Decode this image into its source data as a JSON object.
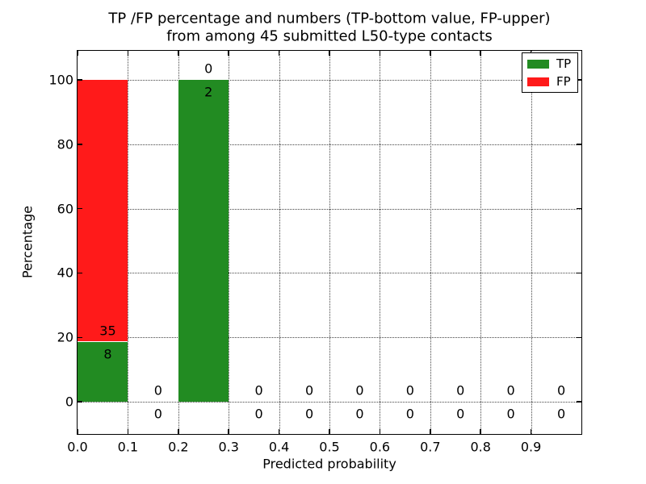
{
  "title": {
    "line1": "TP /FP percentage and numbers (TP-bottom value, FP-upper)",
    "line2": "from among 45 submitted L50-type contacts"
  },
  "axes": {
    "xlabel": "Predicted probability",
    "ylabel": "Percentage"
  },
  "legend": {
    "items": [
      {
        "label": "TP",
        "color": "#228b22"
      },
      {
        "label": "FP",
        "color": "#ff1a1a"
      }
    ]
  },
  "chart_data": {
    "type": "bar",
    "stacked": true,
    "title": "TP /FP percentage and numbers (TP-bottom value, FP-upper) from among 45 submitted L50-type contacts",
    "xlabel": "Predicted probability",
    "ylabel": "Percentage",
    "total_contacts": 45,
    "bin_edges": [
      0.0,
      0.1,
      0.2,
      0.3,
      0.4,
      0.5,
      0.6,
      0.7,
      0.8,
      0.9,
      1.0
    ],
    "series": [
      {
        "name": "TP",
        "color": "#228b22",
        "counts": [
          8,
          0,
          2,
          0,
          0,
          0,
          0,
          0,
          0,
          0
        ],
        "percent": [
          18.6,
          0,
          100,
          0,
          0,
          0,
          0,
          0,
          0,
          0
        ]
      },
      {
        "name": "FP",
        "color": "#ff1a1a",
        "counts": [
          35,
          0,
          0,
          0,
          0,
          0,
          0,
          0,
          0,
          0
        ],
        "percent": [
          81.4,
          0,
          0,
          0,
          0,
          0,
          0,
          0,
          0,
          0
        ]
      }
    ],
    "xticks": [
      "0.0",
      "0.1",
      "0.2",
      "0.3",
      "0.4",
      "0.5",
      "0.6",
      "0.7",
      "0.8",
      "0.9"
    ],
    "xtick_values": [
      0.0,
      0.1,
      0.2,
      0.3,
      0.4,
      0.5,
      0.6,
      0.7,
      0.8,
      0.9
    ],
    "yticks": [
      "0",
      "20",
      "40",
      "60",
      "80",
      "100"
    ],
    "ytick_values": [
      0,
      20,
      40,
      60,
      80,
      100
    ],
    "xlim": [
      0.0,
      1.0
    ],
    "ylim": [
      -10,
      109
    ],
    "grid": "dotted",
    "legend_position": "upper right"
  }
}
